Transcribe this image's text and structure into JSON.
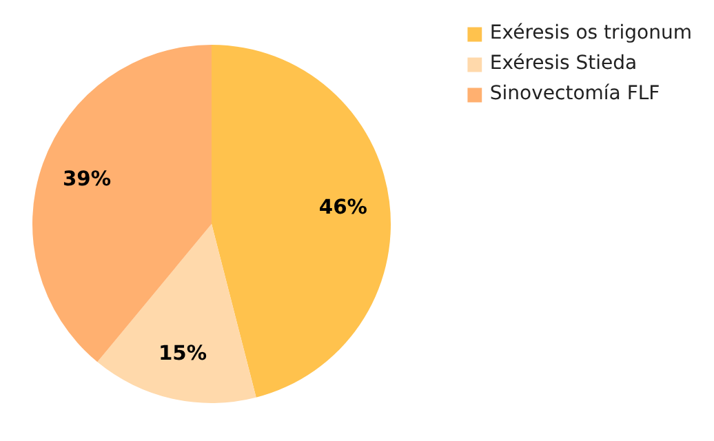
{
  "chart_data": {
    "type": "pie",
    "categories": [
      "Exéresis os trigonum",
      "Exéresis Stieda",
      "Sinovectomía FLF"
    ],
    "values": [
      46,
      15,
      39
    ],
    "colors": [
      "#ffc24d",
      "#ffd9ab",
      "#ffb070"
    ],
    "value_labels": [
      "46%",
      "15%",
      "39%"
    ],
    "legend": "top right"
  }
}
